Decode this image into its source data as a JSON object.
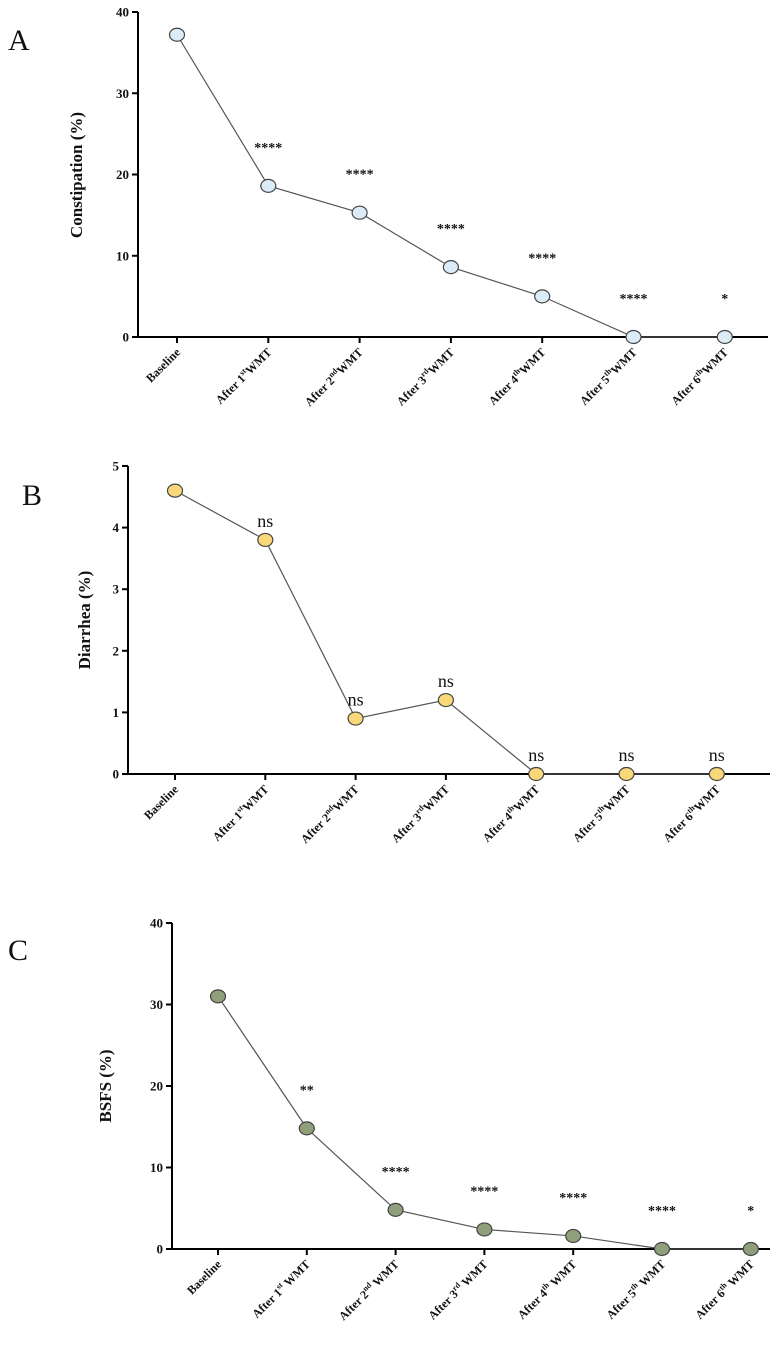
{
  "chart_data": [
    {
      "type": "line",
      "panel": "A",
      "ylabel": "Constipation (%)",
      "ylim": [
        0,
        40
      ],
      "yticks": [
        0,
        10,
        20,
        30,
        40
      ],
      "categories": [
        {
          "pre": "Baseline"
        },
        {
          "pre": "After 1",
          "sup": "st",
          "post": "WMT"
        },
        {
          "pre": "After 2",
          "sup": "nd",
          "post": "WMT"
        },
        {
          "pre": "After 3",
          "sup": "rd",
          "post": "WMT"
        },
        {
          "pre": "After 4",
          "sup": "th",
          "post": "WMT"
        },
        {
          "pre": "After 5",
          "sup": "th",
          "post": "WMT"
        },
        {
          "pre": "After 6",
          "sup": "th",
          "post": "WMT"
        }
      ],
      "values": [
        37.2,
        18.6,
        15.3,
        8.6,
        5.0,
        0,
        0
      ],
      "annotations": [
        "",
        "****",
        "****",
        "****",
        "****",
        "****",
        "*"
      ],
      "marker_color": "#dcecf7"
    },
    {
      "type": "line",
      "panel": "B",
      "ylabel": "Diarrhea (%)",
      "ylim": [
        0,
        5
      ],
      "yticks": [
        0,
        1,
        2,
        3,
        4,
        5
      ],
      "categories": [
        {
          "pre": "Baseline"
        },
        {
          "pre": "After 1",
          "sup": "st",
          "post": "WMT"
        },
        {
          "pre": "After 2",
          "sup": "nd",
          "post": "WMT"
        },
        {
          "pre": "After 3",
          "sup": "rd",
          "post": "WMT"
        },
        {
          "pre": "After 4",
          "sup": "th",
          "post": "WMT"
        },
        {
          "pre": "After 5",
          "sup": "th",
          "post": "WMT"
        },
        {
          "pre": "After 6",
          "sup": "th",
          "post": "WMT"
        }
      ],
      "values": [
        4.6,
        3.8,
        0.9,
        1.2,
        0,
        0,
        0
      ],
      "annotations": [
        "",
        "ns",
        "ns",
        "ns",
        "ns",
        "ns",
        "ns"
      ],
      "marker_color": "#f9d879"
    },
    {
      "type": "line",
      "panel": "C",
      "ylabel": "BSFS (%)",
      "ylim": [
        0,
        40
      ],
      "yticks": [
        0,
        10,
        20,
        30,
        40
      ],
      "categories": [
        {
          "pre": "Baseline"
        },
        {
          "pre": "After 1",
          "sup": "st",
          "post": " WMT"
        },
        {
          "pre": "After 2",
          "sup": "nd",
          "post": " WMT"
        },
        {
          "pre": "After 3",
          "sup": "rd",
          "post": " WMT"
        },
        {
          "pre": "After 4",
          "sup": "th",
          "post": " WMT"
        },
        {
          "pre": "After 5",
          "sup": "th",
          "post": " WMT"
        },
        {
          "pre": "After 6",
          "sup": "th",
          "post": " WMT"
        }
      ],
      "values": [
        31,
        14.8,
        4.8,
        2.4,
        1.6,
        0,
        0
      ],
      "annotations": [
        "",
        "**",
        "****",
        "****",
        "****",
        "****",
        "*"
      ],
      "marker_color": "#8f9f7a"
    }
  ]
}
